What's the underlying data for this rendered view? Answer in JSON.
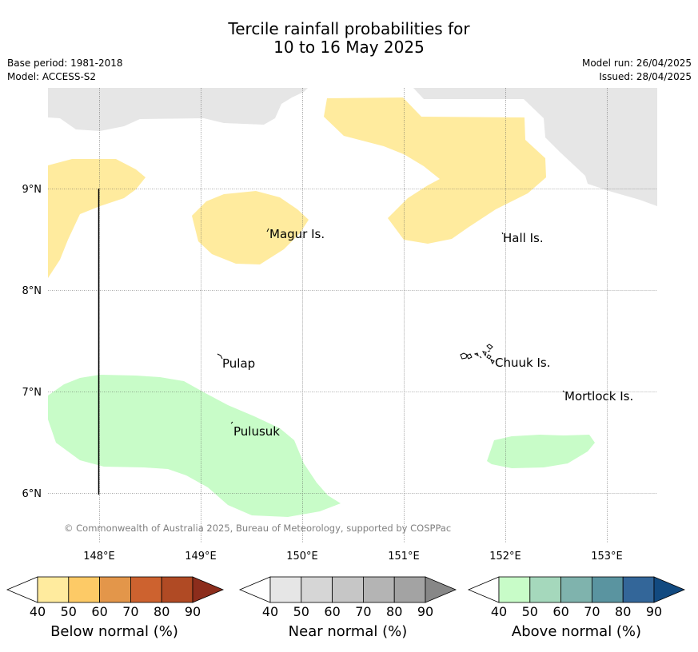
{
  "header": {
    "title_line1": "Tercile rainfall probabilities for",
    "title_line2": "10 to 16 May 2025",
    "base_period": "Base period: 1981-2018",
    "model": "Model: ACCESS-S2",
    "model_run": "Model run: 26/04/2025",
    "issued": "Issued: 28/04/2025"
  },
  "map": {
    "lat_labels": [
      "9°N",
      "8°N",
      "7°N",
      "6°N"
    ],
    "lon_labels": [
      "148°E",
      "149°E",
      "150°E",
      "151°E",
      "152°E",
      "153°E"
    ],
    "places": {
      "magur": "Magur Is.",
      "hall": "Hall Is.",
      "pulap": "Pulap",
      "chuuk": "Chuuk Is.",
      "mortlock": "Mortlock Is.",
      "pulusuk": "Pulusuk"
    },
    "copyright": "© Commonwealth of Australia 2025, Bureau of Meteorology, supported by COSPPac",
    "colors": {
      "no_data": "#e6e6e6",
      "below_40": "#ffeb9e",
      "above_40": "#c8fcc8",
      "grid": "#555555"
    }
  },
  "colorbars": [
    {
      "label": "Below normal (%)",
      "ticks": [
        "40",
        "50",
        "60",
        "70",
        "80",
        "90"
      ],
      "colors": [
        "#ffeb9e",
        "#fdca66",
        "#e3964a",
        "#cd622f",
        "#b04a24",
        "#8c2d1c"
      ]
    },
    {
      "label": "Near normal (%)",
      "ticks": [
        "40",
        "50",
        "60",
        "70",
        "80",
        "90"
      ],
      "colors": [
        "#e6e6e6",
        "#d6d6d6",
        "#c6c6c6",
        "#b4b4b4",
        "#a3a3a3",
        "#878787"
      ]
    },
    {
      "label": "Above normal (%)",
      "ticks": [
        "40",
        "50",
        "60",
        "70",
        "80",
        "90"
      ],
      "colors": [
        "#c8fcc8",
        "#a5d8bc",
        "#7fb3ad",
        "#5a94a0",
        "#336699",
        "#124a80"
      ]
    }
  ]
}
